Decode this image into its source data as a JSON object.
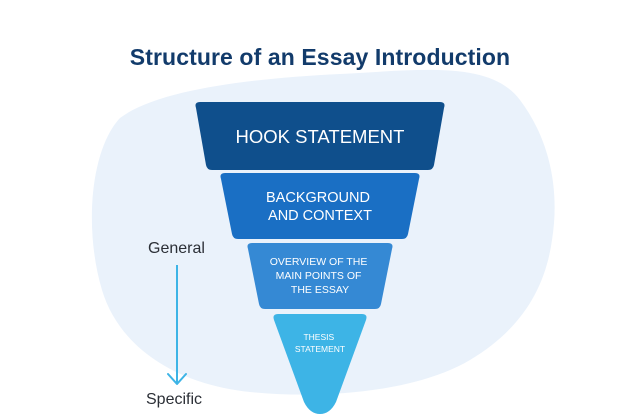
{
  "title": "Structure of an Essay Introduction",
  "levels": [
    {
      "lines": [
        "HOOK STATEMENT"
      ],
      "color": "#0f4f8c"
    },
    {
      "lines": [
        "BACKGROUND",
        "AND CONTEXT"
      ],
      "color": "#1a6fc4"
    },
    {
      "lines": [
        "OVERVIEW OF THE",
        "MAIN POINTS OF",
        "THE ESSAY"
      ],
      "color": "#3589d4"
    },
    {
      "lines": [
        "THESIS",
        "STATEMENT"
      ],
      "color": "#3db4e6"
    }
  ],
  "axis": {
    "top_label": "General",
    "bottom_label": "Specific",
    "arrow_color": "#3db4e6"
  },
  "colors": {
    "background_blob": "#eaf2fb",
    "title": "#123b6b"
  }
}
